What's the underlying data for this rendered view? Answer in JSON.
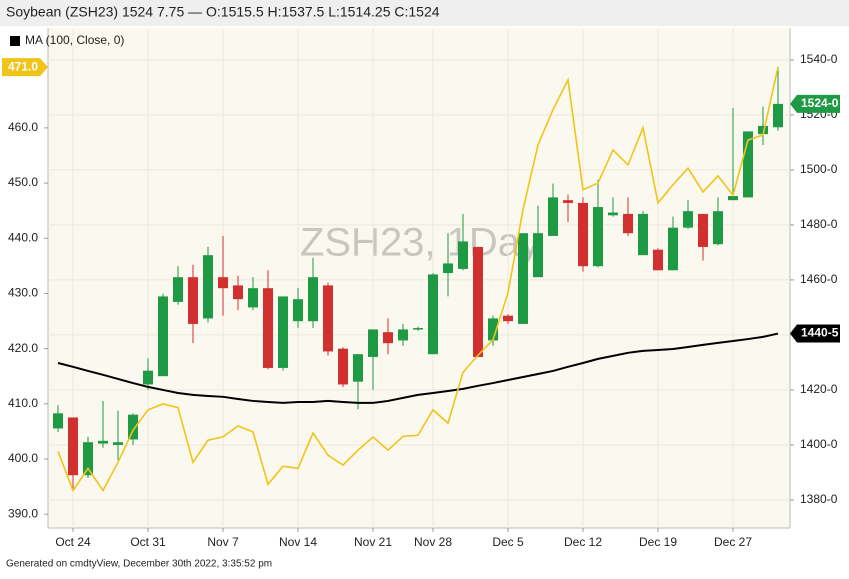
{
  "chart_data": {
    "type": "candlestick",
    "title": "Soybean (ZSH23) 1524 7.75 — O:1515.5 H:1537.5 L:1514.25 C:1524",
    "watermark": "ZSH23, 1Day",
    "footer": "Generated on cmdtyView, December 30th 2022, 3:35:52 pm",
    "categories": [
      null,
      "Oct 24",
      null,
      null,
      null,
      null,
      "Oct 31",
      null,
      null,
      null,
      null,
      "Nov 7",
      null,
      null,
      null,
      null,
      "Nov 14",
      null,
      null,
      null,
      null,
      "Nov 21",
      null,
      null,
      null,
      "Nov 28",
      null,
      null,
      null,
      null,
      "Dec 5",
      null,
      null,
      null,
      null,
      "Dec 12",
      null,
      null,
      null,
      null,
      "Dec 19",
      null,
      null,
      null,
      null,
      "Dec 27",
      null,
      null,
      null
    ],
    "candles": {
      "open": [
        1406,
        1410,
        1389,
        1400.5,
        1400,
        1402,
        1422,
        1425,
        1452,
        1461,
        1446,
        1461,
        1458,
        1450,
        1457,
        1428,
        1445,
        1445,
        1458,
        1435,
        1423,
        1432,
        1441,
        1438,
        1442,
        1433,
        1462.5,
        1464,
        1472,
        1438,
        1447,
        1444,
        1461,
        1476,
        1489,
        1488,
        1465,
        1483.5,
        1484,
        1469,
        1471,
        1463.5,
        1479,
        1484,
        1473,
        1489,
        1490,
        1513,
        1515.5
      ],
      "high": [
        1414.5,
        1410,
        1403,
        1416,
        1412.5,
        1411.5,
        1431.5,
        1455,
        1465,
        1465.5,
        1472,
        1476,
        1461.5,
        1461,
        1463.5,
        1454,
        1457,
        1468,
        1459,
        1435.5,
        1433,
        1442,
        1446,
        1444,
        1443,
        1462.5,
        1477,
        1484,
        1472,
        1447,
        1447.5,
        1477,
        1487,
        1495,
        1491,
        1490,
        1496.5,
        1490,
        1490,
        1485,
        1471.5,
        1483,
        1489,
        1484,
        1490,
        1522.5,
        1514,
        1523,
        1537.5
      ],
      "low": [
        1404.7,
        1384,
        1388,
        1399,
        1394.5,
        1400,
        1420,
        1425,
        1451,
        1437,
        1444.5,
        1447,
        1449,
        1449,
        1427.5,
        1427,
        1442.5,
        1442.5,
        1432.5,
        1421,
        1413,
        1420,
        1433,
        1436,
        1441.5,
        1433,
        1454,
        1463.5,
        1432,
        1436,
        1444,
        1444,
        1461,
        1476,
        1481,
        1463,
        1464.5,
        1483,
        1476,
        1469,
        1463.5,
        1463.5,
        1478.5,
        1467,
        1472.5,
        1489,
        1490,
        1509,
        1514.25
      ],
      "close": [
        1411.5,
        1389,
        1401,
        1401.5,
        1401,
        1411,
        1427,
        1454,
        1461,
        1444,
        1469,
        1457,
        1453,
        1457,
        1428,
        1454,
        1453,
        1461,
        1434,
        1422,
        1433,
        1442,
        1437,
        1442,
        1442.5,
        1462,
        1466,
        1474,
        1432,
        1446,
        1445,
        1477,
        1477,
        1490,
        1488,
        1465,
        1486.5,
        1484.5,
        1477,
        1484,
        1463.5,
        1479,
        1485,
        1472,
        1485,
        1490.5,
        1514,
        1516,
        1524
      ],
      "up_color": "#1e9a45",
      "down_color": "#d03030",
      "last_label": "1524-0"
    },
    "series": [
      {
        "name": "MA (100, Close, 0)",
        "color": "#000000",
        "last_label": "1440-5",
        "values": [
          1429.8,
          1428.4,
          1426.9,
          1425.5,
          1424,
          1422.5,
          1421.1,
          1420,
          1418.9,
          1418.2,
          1417.8,
          1417.5,
          1416.7,
          1416,
          1415.6,
          1415.3,
          1415.6,
          1415.6,
          1416,
          1415.6,
          1415.3,
          1415.3,
          1416,
          1417.1,
          1418.2,
          1418.9,
          1419.6,
          1420.4,
          1421.5,
          1422.5,
          1423.6,
          1424.7,
          1425.8,
          1426.9,
          1428.4,
          1429.8,
          1431.3,
          1432.4,
          1433.5,
          1434.2,
          1434.5,
          1434.9,
          1435.6,
          1436.4,
          1437.1,
          1437.8,
          1438.5,
          1439.3,
          1440.5
        ]
      },
      {
        "color": "#f0c419",
        "axis": "y2",
        "last_label": "471.0",
        "values": [
          401.4,
          394.3,
          398.3,
          394.3,
          399.4,
          405.2,
          408.9,
          410,
          409.3,
          399.4,
          403.4,
          404,
          406,
          404.9,
          395.4,
          398.7,
          398.3,
          404.7,
          400.7,
          398.9,
          401.6,
          404,
          401.6,
          404.1,
          404.3,
          408.9,
          406.5,
          415.7,
          418.8,
          421.6,
          430.1,
          445.2,
          456.9,
          463.3,
          468.7,
          448.8,
          450,
          456,
          453.3,
          460,
          446.4,
          449.7,
          452.7,
          448.4,
          451.3,
          447.8,
          457.8,
          458.7,
          471
        ]
      }
    ],
    "ylim": [
      1369.8,
      1551.6
    ],
    "yticks": [
      {
        "value": 1380,
        "label": "1380-0"
      },
      {
        "value": 1400,
        "label": "1400-0"
      },
      {
        "value": 1420,
        "label": "1420-0"
      },
      {
        "value": 1440,
        "label": "1440-0"
      },
      {
        "value": 1460,
        "label": "1460-0"
      },
      {
        "value": 1480,
        "label": "1480-0"
      },
      {
        "value": 1500,
        "label": "1500-0"
      },
      {
        "value": 1520,
        "label": "1520-0"
      },
      {
        "value": 1540,
        "label": "1540-0"
      }
    ],
    "y2lim": [
      387.5,
      478.1
    ],
    "y2ticks": [
      {
        "value": 390,
        "label": "390.0"
      },
      {
        "value": 400,
        "label": "400.0"
      },
      {
        "value": 410,
        "label": "410.0"
      },
      {
        "value": 420,
        "label": "420.0"
      },
      {
        "value": 430,
        "label": "430.0"
      },
      {
        "value": 440,
        "label": "440.0"
      },
      {
        "value": 450,
        "label": "450.0"
      },
      {
        "value": 460,
        "label": "460.0"
      }
    ],
    "grid": true
  }
}
